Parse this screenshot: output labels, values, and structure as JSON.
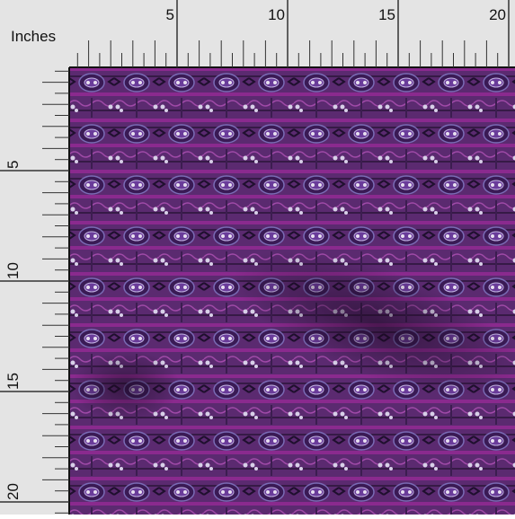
{
  "unit_label": "Inches",
  "top_ruler": {
    "labels": [
      5,
      10,
      15,
      20
    ]
  },
  "left_ruler": {
    "labels": [
      5,
      10,
      15,
      20
    ]
  }
}
